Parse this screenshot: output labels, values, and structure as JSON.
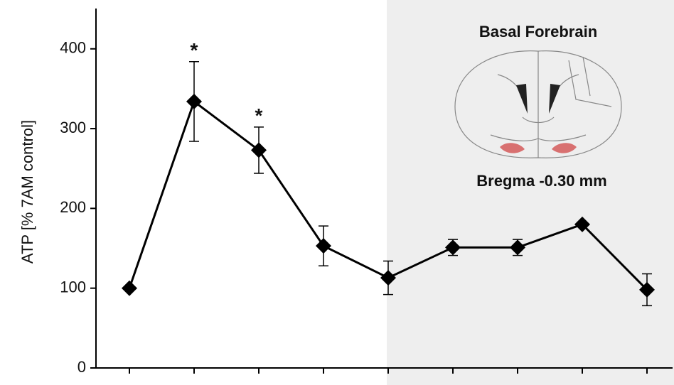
{
  "chart_data": {
    "type": "line",
    "y_label": "ATP [% 7AM control]",
    "categories": [
      null,
      null,
      null,
      null,
      null,
      null,
      null,
      null,
      null
    ],
    "series": [
      {
        "color": "#000000",
        "values": [
          100,
          334,
          273,
          153,
          113,
          151,
          151,
          180,
          98
        ],
        "errors": [
          null,
          50,
          29,
          25,
          21,
          10,
          10,
          null,
          20
        ]
      }
    ],
    "annotations": [
      {
        "text": "*",
        "category_index": 1
      },
      {
        "text": "*",
        "category_index": 2
      }
    ],
    "ylim": [
      0,
      450
    ],
    "yticks": [
      0,
      100,
      200,
      300,
      400
    ],
    "inset": {
      "title": "Basal Forebrain",
      "caption": "Bregma -0.30 mm"
    }
  }
}
